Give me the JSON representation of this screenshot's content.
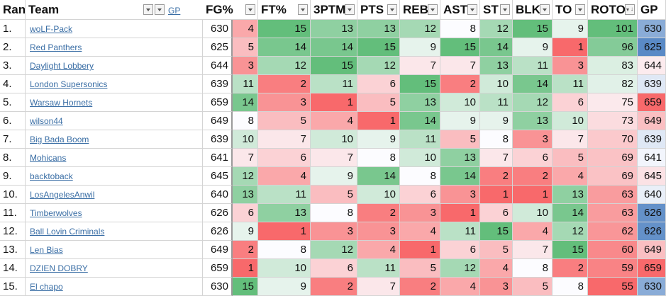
{
  "header": {
    "rank": "Ran",
    "team": "Team",
    "gp": "GP",
    "fg": "FG%",
    "ft": "FT%",
    "tpm": "3PTM",
    "pts": "PTS",
    "reb": "REB",
    "ast": "AST",
    "st": "ST",
    "blk": "BLK",
    "to": "TO",
    "roto": "ROTO",
    "gp2": "GP"
  },
  "rows": [
    {
      "rank": "1.",
      "team": "woLF-Pack",
      "gp": "630",
      "fg": "4",
      "ft": "15",
      "tpm": "13",
      "pts": "13",
      "reb": "12",
      "ast": "8",
      "st": "12",
      "blk": "15",
      "to": "9",
      "roto": "101",
      "gp2": "630"
    },
    {
      "rank": "2.",
      "team": "Red Panthers",
      "gp": "625",
      "fg": "5",
      "ft": "14",
      "tpm": "14",
      "pts": "15",
      "reb": "9",
      "ast": "15",
      "st": "14",
      "blk": "9",
      "to": "1",
      "roto": "96",
      "gp2": "625"
    },
    {
      "rank": "3.",
      "team": "Daylight Lobbery",
      "gp": "644",
      "fg": "3",
      "ft": "12",
      "tpm": "15",
      "pts": "12",
      "reb": "7",
      "ast": "7",
      "st": "13",
      "blk": "11",
      "to": "3",
      "roto": "83",
      "gp2": "644"
    },
    {
      "rank": "4.",
      "team": "London Supersonics",
      "gp": "639",
      "fg": "11",
      "ft": "2",
      "tpm": "11",
      "pts": "6",
      "reb": "15",
      "ast": "2",
      "st": "10",
      "blk": "14",
      "to": "11",
      "roto": "82",
      "gp2": "639"
    },
    {
      "rank": "5.",
      "team": "Warsaw Hornets",
      "gp": "659",
      "fg": "14",
      "ft": "3",
      "tpm": "1",
      "pts": "5",
      "reb": "13",
      "ast": "10",
      "st": "11",
      "blk": "12",
      "to": "6",
      "roto": "75",
      "gp2": "659"
    },
    {
      "rank": "6.",
      "team": "wilson44",
      "gp": "649",
      "fg": "8",
      "ft": "5",
      "tpm": "4",
      "pts": "1",
      "reb": "14",
      "ast": "9",
      "st": "9",
      "blk": "13",
      "to": "10",
      "roto": "73",
      "gp2": "649"
    },
    {
      "rank": "7.",
      "team": "Big Bada Boom",
      "gp": "639",
      "fg": "10",
      "ft": "7",
      "tpm": "10",
      "pts": "9",
      "reb": "11",
      "ast": "5",
      "st": "8",
      "blk": "3",
      "to": "7",
      "roto": "70",
      "gp2": "639"
    },
    {
      "rank": "8.",
      "team": "Mohicans",
      "gp": "641",
      "fg": "7",
      "ft": "6",
      "tpm": "7",
      "pts": "8",
      "reb": "10",
      "ast": "13",
      "st": "7",
      "blk": "6",
      "to": "5",
      "roto": "69",
      "gp2": "641"
    },
    {
      "rank": "9.",
      "team": "backtoback",
      "gp": "645",
      "fg": "12",
      "ft": "4",
      "tpm": "9",
      "pts": "14",
      "reb": "8",
      "ast": "14",
      "st": "2",
      "blk": "2",
      "to": "4",
      "roto": "69",
      "gp2": "645"
    },
    {
      "rank": "10.",
      "team": "LosAngelesAnwil",
      "gp": "640",
      "fg": "13",
      "ft": "11",
      "tpm": "5",
      "pts": "10",
      "reb": "6",
      "ast": "3",
      "st": "1",
      "blk": "1",
      "to": "13",
      "roto": "63",
      "gp2": "640"
    },
    {
      "rank": "11.",
      "team": "Timberwolves",
      "gp": "626",
      "fg": "6",
      "ft": "13",
      "tpm": "8",
      "pts": "2",
      "reb": "3",
      "ast": "1",
      "st": "6",
      "blk": "10",
      "to": "14",
      "roto": "63",
      "gp2": "626"
    },
    {
      "rank": "12.",
      "team": "Ball Lovin Criminals",
      "gp": "626",
      "fg": "9",
      "ft": "1",
      "tpm": "3",
      "pts": "3",
      "reb": "4",
      "ast": "11",
      "st": "15",
      "blk": "4",
      "to": "12",
      "roto": "62",
      "gp2": "626"
    },
    {
      "rank": "13.",
      "team": "Len Bias",
      "gp": "649",
      "fg": "2",
      "ft": "8",
      "tpm": "12",
      "pts": "4",
      "reb": "1",
      "ast": "6",
      "st": "5",
      "blk": "7",
      "to": "15",
      "roto": "60",
      "gp2": "649"
    },
    {
      "rank": "14.",
      "team": "DZIEN DOBRY",
      "gp": "659",
      "fg": "1",
      "ft": "10",
      "tpm": "6",
      "pts": "11",
      "reb": "5",
      "ast": "12",
      "st": "4",
      "blk": "8",
      "to": "2",
      "roto": "59",
      "gp2": "659"
    },
    {
      "rank": "15.",
      "team": "El chapo",
      "gp": "630",
      "fg": "15",
      "ft": "9",
      "tpm": "2",
      "pts": "7",
      "reb": "2",
      "ast": "4",
      "st": "3",
      "blk": "5",
      "to": "8",
      "roto": "55",
      "gp2": "630"
    }
  ],
  "colors": {
    "low": "#f8696b",
    "mid": "#fcfcff",
    "high": "#63be7b",
    "gp_low": "#f8696b",
    "gp_mid": "#fcfcff",
    "gp_high": "#5a8ac6",
    "grid": "#d4d4d4"
  },
  "icons": {
    "filter": "dropdown-filter-icon",
    "sort": "sort-descending-icon"
  }
}
